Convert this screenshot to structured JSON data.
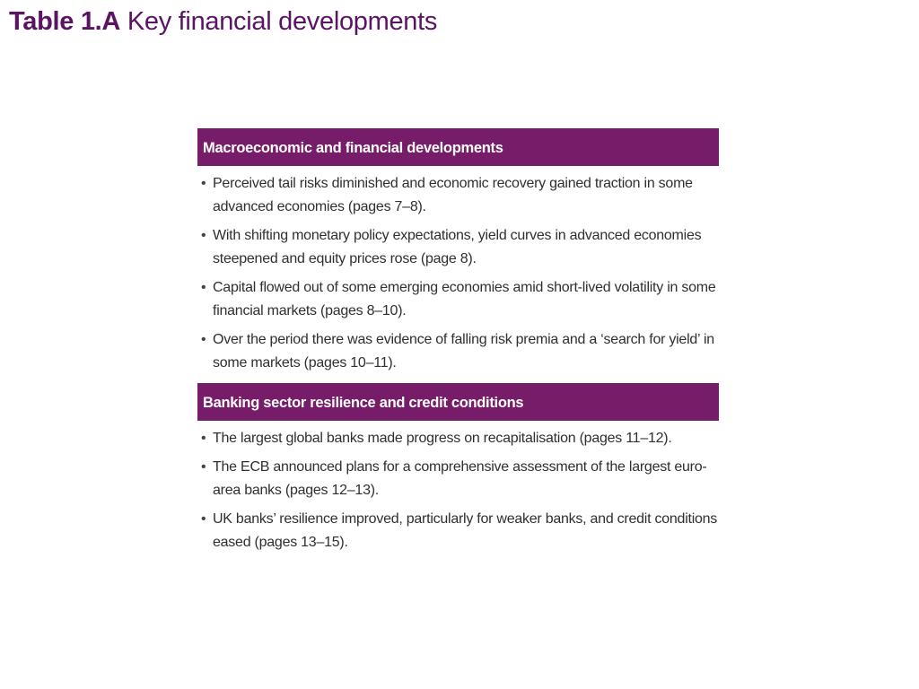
{
  "title": {
    "label": "Table 1.A",
    "text": "Key financial developments"
  },
  "sections": [
    {
      "heading": "Macroeconomic and financial developments",
      "items": [
        "Perceived tail risks diminished and economic recovery gained traction in some advanced economies (pages 7–8).",
        "With shifting monetary policy expectations, yield curves in advanced economies steepened and equity prices rose (page 8).",
        "Capital flowed out of some emerging economies amid short-lived volatility in some financial markets (pages 8–10).",
        "Over the period there was evidence of falling risk premia and a ‘search for yield’ in some markets (pages 10–11)."
      ]
    },
    {
      "heading": "Banking sector resilience and credit conditions",
      "items": [
        "The largest global banks made progress on recapitalisation (pages 11–12).",
        "The ECB announced plans for a comprehensive assessment of the largest euro-area banks (pages 12–13).",
        "UK banks’ resilience improved, particularly for weaker banks, and credit conditions eased (pages 13–15)."
      ]
    }
  ],
  "colors": {
    "accent": "#771c68",
    "title": "#5b1464"
  }
}
